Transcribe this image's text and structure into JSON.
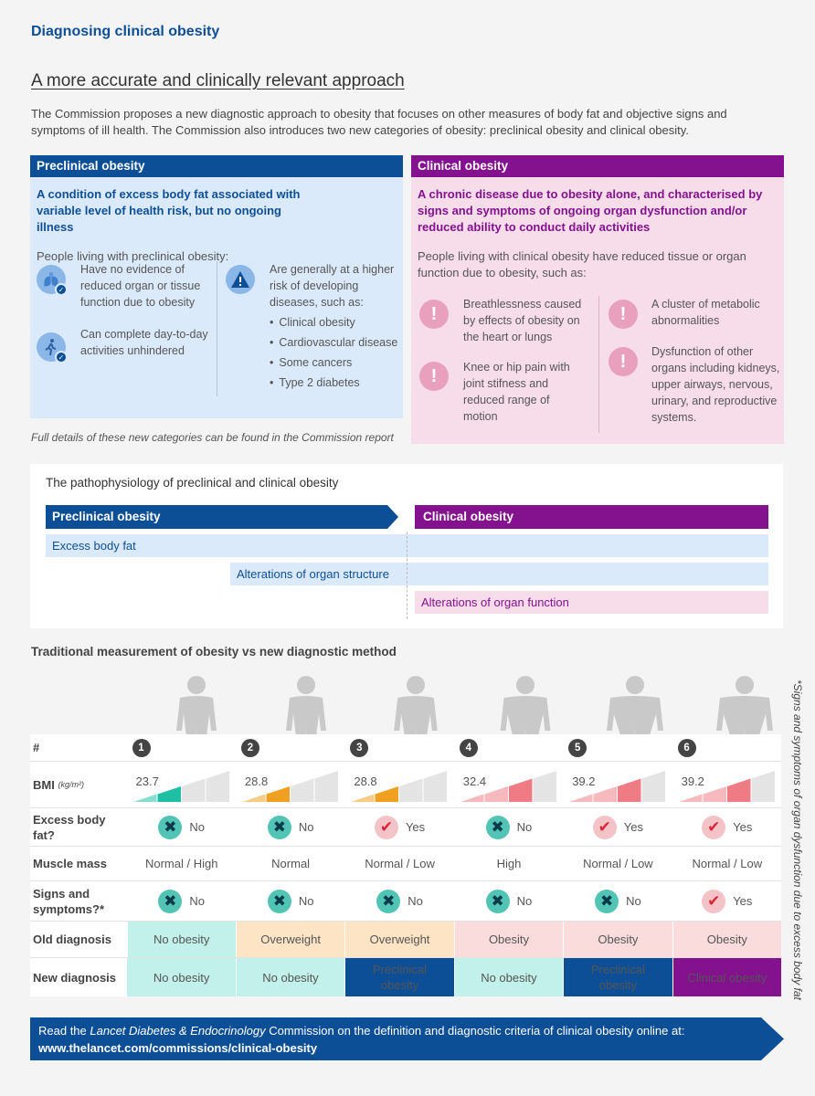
{
  "header": {
    "title": "Diagnosing clinical obesity"
  },
  "section": {
    "heading": "A more accurate and clinically relevant approach",
    "intro": "The Commission proposes a new diagnostic approach to obesity that focuses on other measures of body fat and objective signs and symptoms of ill health. The Commission also introduces two new categories of obesity: preclinical obesity and clinical obesity."
  },
  "preclinical": {
    "label": "Preclinical obesity",
    "lead": "A condition of excess body fat associated with variable level of health risk, but no ongoing illness",
    "sub": "People living with preclinical obesity:",
    "item1": "Have no evidence of reduced organ or tissue function due to obesity",
    "item2": "Can complete day-to-day activities unhindered",
    "risk_intro": "Are generally at a higher risk of developing diseases, such as:",
    "risks": [
      "Clinical obesity",
      "Cardiovascular disease",
      "Some cancers",
      "Type 2 diabetes"
    ],
    "icons": [
      "lungs-icon",
      "walking-person-icon",
      "warning-icon"
    ]
  },
  "clinical": {
    "label": "Clinical obesity",
    "lead": "A chronic disease due to obesity alone, and characterised by signs and symptoms of ongoing organ dysfunction and/or reduced ability to conduct daily activities",
    "sub": "People living with clinical obesity have reduced tissue or organ function due to obesity, such as:",
    "item1": "Breathlessness caused by effects of obesity on the heart or lungs",
    "item2": "Knee or hip pain with joint stifness and reduced range of motion",
    "item3": "A cluster of metabolic abnormalities",
    "item4": "Dysfunction of other organs including kidneys, upper airways, nervous, urinary, and reproductive systems.",
    "icon_glyph": "!"
  },
  "note": "Full details of these new categories can be found in the Commission report",
  "patho": {
    "title": "The pathophysiology of preclinical and clinical obesity",
    "pre_label": "Preclinical obesity",
    "cli_label": "Clinical obesity",
    "bar1": "Excess body fat",
    "bar2": "Alterations of organ structure",
    "bar3": "Alterations of organ function"
  },
  "comparison": {
    "title": "Traditional measurement of obesity vs new diagnostic method",
    "row_labels": {
      "num": "#",
      "bmi": "BMI",
      "bmi_unit": "(kg/m²)",
      "fat": "Excess body fat?",
      "muscle": "Muscle mass",
      "signs": "Signs and symptoms?*",
      "old": "Old diagnosis",
      "new": "New diagnosis"
    },
    "people": [
      {
        "num": "1",
        "bmi": "23.7",
        "bmi_level": 2,
        "bmi_color": "#1fbfa6",
        "fat": "No",
        "muscle": "Normal / High",
        "signs": "No",
        "old": "No obesity",
        "old_class": "d-none",
        "new": "No obesity",
        "new_class": "d-none"
      },
      {
        "num": "2",
        "bmi": "28.8",
        "bmi_level": 2,
        "bmi_color": "#f0a020",
        "fat": "No",
        "muscle": "Normal",
        "signs": "No",
        "old": "Overweight",
        "old_class": "d-over",
        "new": "No obesity",
        "new_class": "d-none"
      },
      {
        "num": "3",
        "bmi": "28.8",
        "bmi_level": 2,
        "bmi_color": "#f0a020",
        "fat": "Yes",
        "muscle": "Normal / Low",
        "signs": "No",
        "old": "Overweight",
        "old_class": "d-over",
        "new": "Preclinical obesity",
        "new_class": "d-pre"
      },
      {
        "num": "4",
        "bmi": "32.4",
        "bmi_level": 3,
        "bmi_color": "#ef7b84",
        "fat": "No",
        "muscle": "High",
        "signs": "No",
        "old": "Obesity",
        "old_class": "d-obes",
        "new": "No obesity",
        "new_class": "d-none"
      },
      {
        "num": "5",
        "bmi": "39.2",
        "bmi_level": 3,
        "bmi_color": "#ef7b84",
        "fat": "Yes",
        "muscle": "Normal / Low",
        "signs": "No",
        "old": "Obesity",
        "old_class": "d-obes",
        "new": "Preclinical obesity",
        "new_class": "d-pre"
      },
      {
        "num": "6",
        "bmi": "39.2",
        "bmi_level": 3,
        "bmi_color": "#ef7b84",
        "fat": "Yes",
        "muscle": "Normal / Low",
        "signs": "Yes",
        "old": "Obesity",
        "old_class": "d-obes",
        "new": "Clinical obesity",
        "new_class": "d-cli"
      }
    ],
    "side_note": "*Signs and symptoms of organ dysfunction due to excess body fat"
  },
  "footer": {
    "pre": "Read the ",
    "journal": "Lancet Diabetes & Endocrinology",
    "mid": " Commission on the definition and diagnostic criteria of clinical obesity online at: ",
    "url": "www.thelancet.com/commissions/clinical-obesity"
  }
}
